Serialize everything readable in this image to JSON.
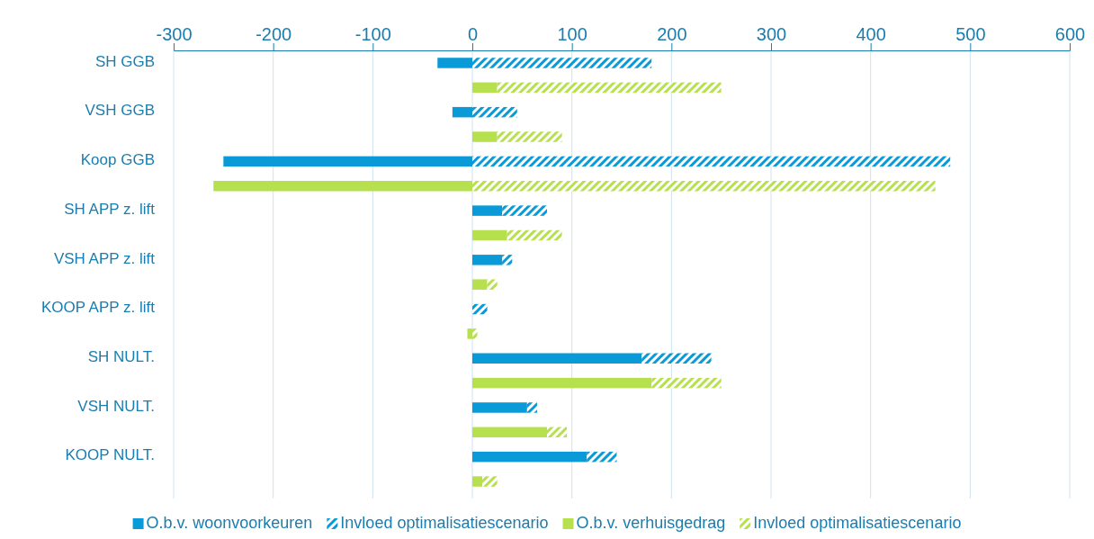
{
  "chart_data": {
    "type": "bar",
    "orientation": "horizontal",
    "stacked": true,
    "categories": [
      "SH GGB",
      null,
      "VSH GGB",
      null,
      "Koop GGB",
      null,
      "SH APP z. lift",
      null,
      "VSH APP z. lift",
      null,
      "KOOP APP z. lift",
      null,
      "SH NULT.",
      null,
      "VSH NULT.",
      null,
      "KOOP NULT.",
      null
    ],
    "series": [
      {
        "name": "O.b.v. woonvoorkeuren",
        "color": "#0a9ad8",
        "values": [
          -35,
          null,
          -20,
          null,
          -250,
          null,
          30,
          null,
          30,
          null,
          0,
          null,
          170,
          null,
          55,
          null,
          115,
          null
        ]
      },
      {
        "name": "Invloed optimalisatiescenario",
        "color": "#0a9ad8",
        "values": [
          180,
          null,
          45,
          null,
          480,
          null,
          45,
          null,
          10,
          null,
          15,
          null,
          70,
          null,
          10,
          null,
          30,
          null
        ]
      },
      {
        "name": "O.b.v. verhuisgedrag",
        "color": "#b7e04f",
        "values": [
          null,
          25,
          null,
          25,
          null,
          -260,
          null,
          35,
          null,
          15,
          null,
          -5,
          null,
          180,
          null,
          75,
          null,
          10
        ]
      },
      {
        "name": "Invloed optimalisatiescenario",
        "color": "#b7e04f",
        "values": [
          null,
          225,
          null,
          65,
          null,
          465,
          null,
          55,
          null,
          10,
          null,
          5,
          null,
          70,
          null,
          20,
          null,
          15
        ]
      }
    ],
    "xlim": [
      -300,
      600
    ],
    "xticks": [
      -300,
      -200,
      -100,
      0,
      100,
      200,
      300,
      400,
      500,
      600
    ],
    "grid": "x",
    "legend": "bottom"
  }
}
